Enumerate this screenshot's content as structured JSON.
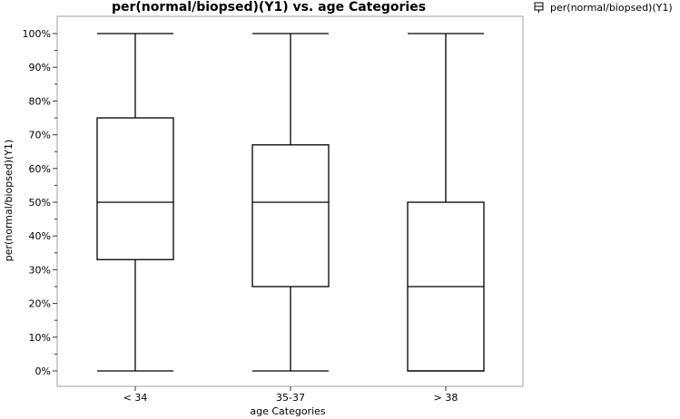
{
  "chart_data": {
    "type": "box",
    "title": "per(normal/biopsed)(Y1) vs. age Categories",
    "xlabel": "age Categories",
    "ylabel": "per(normal/biopsed)(Y1)",
    "ylim": [
      0,
      100
    ],
    "y_unit": "%",
    "y_ticks": [
      "0%",
      "10%",
      "20%",
      "30%",
      "40%",
      "50%",
      "60%",
      "70%",
      "80%",
      "90%",
      "100%"
    ],
    "categories": [
      "< 34",
      "35-37",
      "> 38"
    ],
    "series": [
      {
        "name": "per(normal/biopsed)(Y1)",
        "boxes": [
          {
            "category": "< 34",
            "min": 0,
            "q1": 33,
            "median": 50,
            "q3": 75,
            "max": 100
          },
          {
            "category": "35-37",
            "min": 0,
            "q1": 25,
            "median": 50,
            "q3": 67,
            "max": 100
          },
          {
            "category": "> 38",
            "min": 0,
            "q1": 0,
            "median": 25,
            "q3": 50,
            "max": 100
          }
        ]
      }
    ],
    "legend": {
      "position": "top-right",
      "entries": [
        "per(normal/biopsed)(Y1)"
      ]
    },
    "grid": false,
    "colors": {
      "box_stroke": "#000000",
      "frame": "#a0a0a0",
      "axis": "#333333"
    }
  }
}
